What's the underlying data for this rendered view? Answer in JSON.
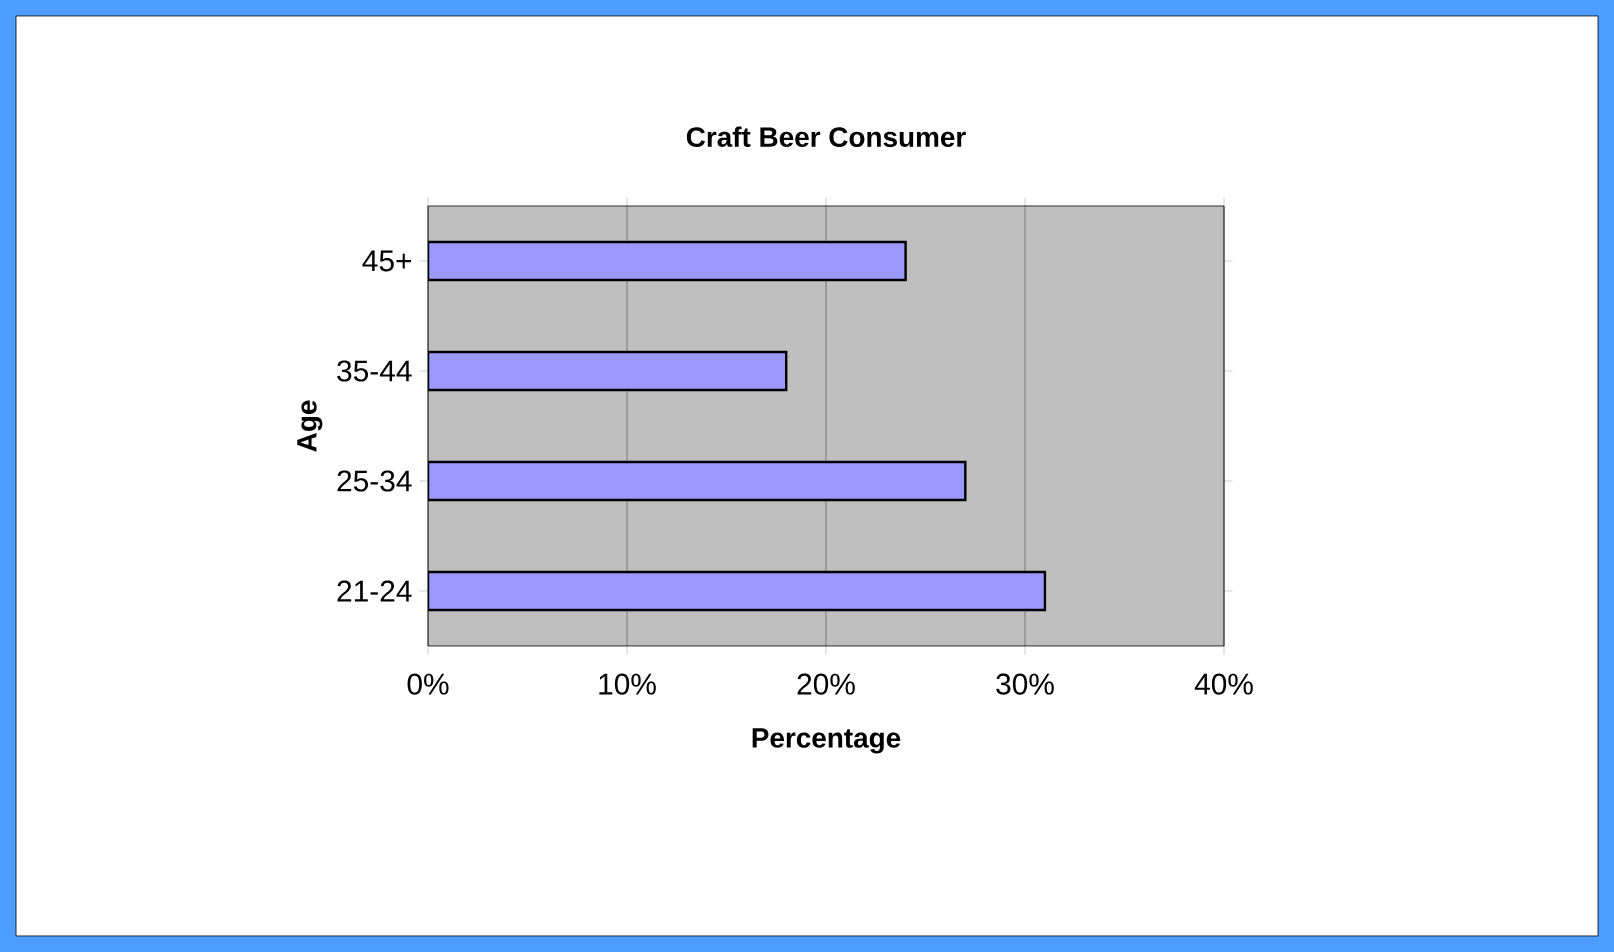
{
  "chart_data": {
    "type": "bar",
    "orientation": "horizontal",
    "title": "Craft Beer Consumer",
    "xlabel": "Percentage",
    "ylabel": "Age",
    "categories": [
      "45+",
      "35-44",
      "25-34",
      "21-24"
    ],
    "values": [
      24,
      18,
      27,
      31
    ],
    "color": "#9999ff",
    "xlim": [
      0,
      40
    ],
    "xticks": [
      {
        "value": 0,
        "label": "0%"
      },
      {
        "value": 10,
        "label": "10%"
      },
      {
        "value": 20,
        "label": "20%"
      },
      {
        "value": 30,
        "label": "30%"
      },
      {
        "value": 40,
        "label": "40%"
      }
    ],
    "grid": "x"
  }
}
